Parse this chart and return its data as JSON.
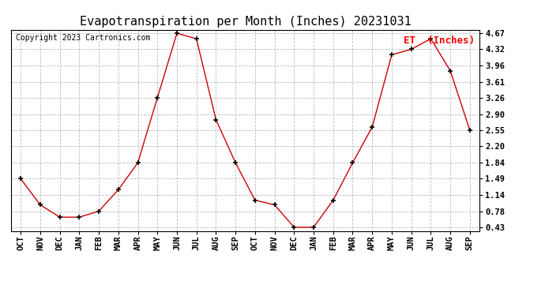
{
  "title": "Evapotranspiration per Month (Inches) 20231031",
  "copyright": "Copyright 2023 Cartronics.com",
  "legend_label": "ET  (Inches)",
  "months": [
    "OCT",
    "NOV",
    "DEC",
    "JAN",
    "FEB",
    "MAR",
    "APR",
    "MAY",
    "JUN",
    "JUL",
    "AUG",
    "SEP",
    "OCT",
    "NOV",
    "DEC",
    "JAN",
    "FEB",
    "MAR",
    "APR",
    "MAY",
    "JUN",
    "JUL",
    "AUG",
    "SEP"
  ],
  "values": [
    1.49,
    0.92,
    0.65,
    0.65,
    0.78,
    1.25,
    1.84,
    3.26,
    4.67,
    4.55,
    2.78,
    1.84,
    1.02,
    0.92,
    0.43,
    0.43,
    1.02,
    1.84,
    2.62,
    4.2,
    4.32,
    4.55,
    3.85,
    2.55
  ],
  "line_color": "#cc0000",
  "marker": "+",
  "marker_size": 5,
  "marker_color": "black",
  "yticks": [
    0.43,
    0.78,
    1.14,
    1.49,
    1.84,
    2.2,
    2.55,
    2.9,
    3.26,
    3.61,
    3.96,
    4.32,
    4.67
  ],
  "ymin": 0.43,
  "ymax": 4.67,
  "background_color": "#ffffff",
  "grid_color": "#bbbbbb",
  "title_fontsize": 11,
  "legend_fontsize": 9,
  "copyright_fontsize": 7,
  "tick_fontsize": 7.5
}
